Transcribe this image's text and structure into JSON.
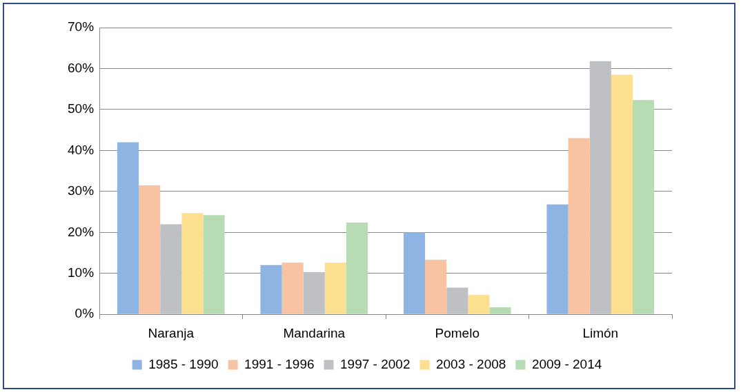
{
  "chart_data": {
    "type": "bar",
    "categories": [
      "Naranja",
      "Mandarina",
      "Pomelo",
      "Limón"
    ],
    "series": [
      {
        "name": "1985 - 1990",
        "color": "#8db4e2",
        "values": [
          42.0,
          12.0,
          20.0,
          26.8
        ]
      },
      {
        "name": "1991 - 1996",
        "color": "#f8c3a2",
        "values": [
          31.5,
          12.6,
          13.3,
          43.0
        ]
      },
      {
        "name": "1997 - 2002",
        "color": "#bfc0c4",
        "values": [
          22.0,
          10.3,
          6.5,
          61.8
        ]
      },
      {
        "name": "2003 - 2008",
        "color": "#fde08f",
        "values": [
          24.7,
          12.6,
          4.7,
          58.5
        ]
      },
      {
        "name": "2009 - 2014",
        "color": "#b7dcb4",
        "values": [
          24.2,
          22.4,
          1.7,
          52.3
        ]
      }
    ],
    "ylim": [
      0,
      70
    ],
    "yticks": [
      {
        "value": 0,
        "label": "0%"
      },
      {
        "value": 10,
        "label": "10%"
      },
      {
        "value": 20,
        "label": "20%"
      },
      {
        "value": 30,
        "label": "30%"
      },
      {
        "value": 40,
        "label": "40%"
      },
      {
        "value": 50,
        "label": "50%"
      },
      {
        "value": 60,
        "label": "60%"
      },
      {
        "value": 70,
        "label": "70%"
      }
    ],
    "grid": "y",
    "legend": "bottom"
  }
}
